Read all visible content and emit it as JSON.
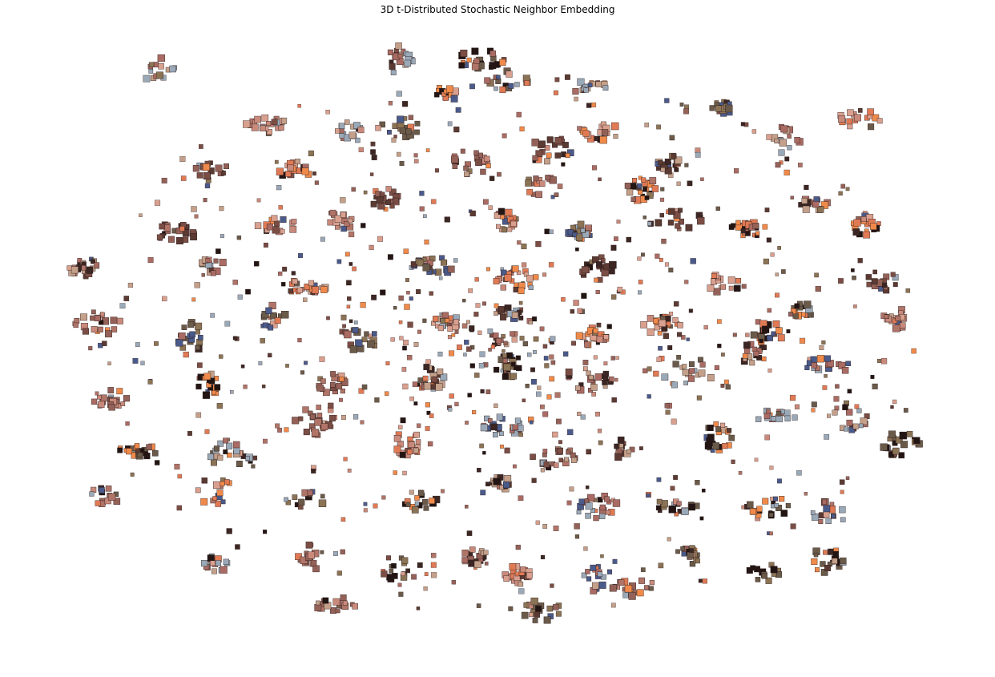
{
  "chart_data": {
    "type": "scatter",
    "title": "3D t-Distributed Stochastic Neighbor Embedding",
    "xlabel": "",
    "ylabel": "",
    "axes_visible": false,
    "grid": false,
    "legend": "none",
    "xlim": [
      -100,
      100
    ],
    "ylim": [
      -100,
      100
    ],
    "marker": "image-thumbnail",
    "palette": [
      "#3b2623",
      "#5a3a33",
      "#7a4d45",
      "#946158",
      "#b07468",
      "#c98a7c",
      "#d9a08f",
      "#e07a55",
      "#f08a4b",
      "#231513",
      "#6a5a4a",
      "#8b7355",
      "#4a5a8a",
      "#9aa9b8",
      "#a96b63",
      "#c4a08a"
    ],
    "clusters": [
      {
        "x": -75,
        "y": 91
      },
      {
        "x": -4,
        "y": 95
      },
      {
        "x": 20,
        "y": 86
      },
      {
        "x": -12,
        "y": 83
      },
      {
        "x": -52,
        "y": 73
      },
      {
        "x": -33,
        "y": 70
      },
      {
        "x": -22,
        "y": 72
      },
      {
        "x": 22,
        "y": 71
      },
      {
        "x": 50,
        "y": 79
      },
      {
        "x": 63,
        "y": 68
      },
      {
        "x": 80,
        "y": 75
      },
      {
        "x": -64,
        "y": 58
      },
      {
        "x": -45,
        "y": 58
      },
      {
        "x": -6,
        "y": 60
      },
      {
        "x": 12,
        "y": 64
      },
      {
        "x": 38,
        "y": 60
      },
      {
        "x": 70,
        "y": 46
      },
      {
        "x": 40,
        "y": 41
      },
      {
        "x": 32,
        "y": 51
      },
      {
        "x": -72,
        "y": 37
      },
      {
        "x": -49,
        "y": 39
      },
      {
        "x": -35,
        "y": 41
      },
      {
        "x": -25,
        "y": 48
      },
      {
        "x": 2,
        "y": 41
      },
      {
        "x": 18,
        "y": 37
      },
      {
        "x": 55,
        "y": 38
      },
      {
        "x": 81,
        "y": 39
      },
      {
        "x": -92,
        "y": 25
      },
      {
        "x": -64,
        "y": 26
      },
      {
        "x": -43,
        "y": 19
      },
      {
        "x": -14,
        "y": 26
      },
      {
        "x": 4,
        "y": 21
      },
      {
        "x": 22,
        "y": 25
      },
      {
        "x": 50,
        "y": 20
      },
      {
        "x": 85,
        "y": 20
      },
      {
        "x": -89,
        "y": 7
      },
      {
        "x": -68,
        "y": 2
      },
      {
        "x": -50,
        "y": 8
      },
      {
        "x": -31,
        "y": 1
      },
      {
        "x": -12,
        "y": 7
      },
      {
        "x": 4,
        "y": 10
      },
      {
        "x": 21,
        "y": 2
      },
      {
        "x": 36,
        "y": 6
      },
      {
        "x": 60,
        "y": 3
      },
      {
        "x": 67,
        "y": 11
      },
      {
        "x": 88,
        "y": 8
      },
      {
        "x": -86,
        "y": -19
      },
      {
        "x": -64,
        "y": -14
      },
      {
        "x": -37,
        "y": -14
      },
      {
        "x": -15,
        "y": -12
      },
      {
        "x": 2,
        "y": -8
      },
      {
        "x": 20,
        "y": -12
      },
      {
        "x": 42,
        "y": -11
      },
      {
        "x": 56,
        "y": -3
      },
      {
        "x": 73,
        "y": -8
      },
      {
        "x": 78,
        "y": -25
      },
      {
        "x": -80,
        "y": -36
      },
      {
        "x": -60,
        "y": -37
      },
      {
        "x": -41,
        "y": -27
      },
      {
        "x": -20,
        "y": -34
      },
      {
        "x": 0,
        "y": -28
      },
      {
        "x": 12,
        "y": -38
      },
      {
        "x": 28,
        "y": -36
      },
      {
        "x": 48,
        "y": -32
      },
      {
        "x": 62,
        "y": -25
      },
      {
        "x": 89,
        "y": -34
      },
      {
        "x": -88,
        "y": -52
      },
      {
        "x": -63,
        "y": -50
      },
      {
        "x": -43,
        "y": -53
      },
      {
        "x": -18,
        "y": -53
      },
      {
        "x": 0,
        "y": -47
      },
      {
        "x": 22,
        "y": -55
      },
      {
        "x": 40,
        "y": -55
      },
      {
        "x": 60,
        "y": -55
      },
      {
        "x": 73,
        "y": -58
      },
      {
        "x": -63,
        "y": -74
      },
      {
        "x": -42,
        "y": -72
      },
      {
        "x": -23,
        "y": -75
      },
      {
        "x": -5,
        "y": -72
      },
      {
        "x": 4,
        "y": -78
      },
      {
        "x": 22,
        "y": -79
      },
      {
        "x": 42,
        "y": -72
      },
      {
        "x": 59,
        "y": -77
      },
      {
        "x": 73,
        "y": -73
      },
      {
        "x": -36,
        "y": -88
      },
      {
        "x": 10,
        "y": -90
      },
      {
        "x": 30,
        "y": -82
      },
      {
        "x": 2,
        "y": 88
      },
      {
        "x": -22,
        "y": 95
      },
      {
        "x": 10,
        "y": 52
      }
    ]
  }
}
